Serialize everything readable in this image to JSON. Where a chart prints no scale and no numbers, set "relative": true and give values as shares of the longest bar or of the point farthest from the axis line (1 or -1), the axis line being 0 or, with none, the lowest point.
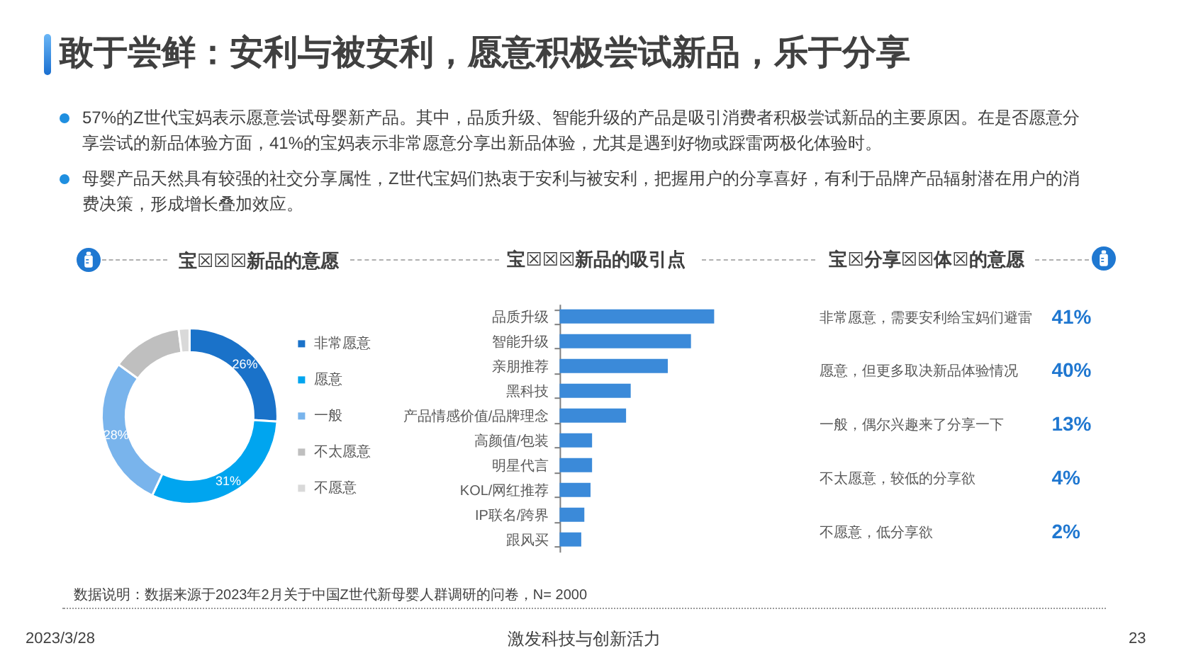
{
  "chart_data": [
    {
      "type": "other",
      "title": "敢于尝鲜：安利与被安利，愿意积极尝试新品，乐于分享",
      "annotations": [
        "57%的Z世代宝妈表示愿意尝试母婴新产品。其中，品质升级、智能升级的产品是吸引消费者积极尝试新品的主要原因。在是否愿意分享尝试的新品体验方面，41%的宝妈表示非常愿意分享出新品体验，尤其是遇到好物或踩雷两极化体验时。",
        "母婴产品天然具有较强的社交分享属性，Z世代宝妈们热衷于安利与被安利，把握用户的分享喜好，有利于品牌产品辐射潜在用户的消费决策，形成增长叠加效应。"
      ]
    },
    {
      "type": "donut",
      "title": "宝☒☒☒新品的意愿",
      "categories": [
        "非常愿意",
        "愿意",
        "一般",
        "不太愿意",
        "不愿意"
      ],
      "values": [
        26,
        31,
        28,
        13,
        2
      ],
      "colors": [
        "#1a72c9",
        "#00a5ef",
        "#79b4ec",
        "#bfbfbf",
        "#d9d9d9"
      ],
      "value_labels": [
        "26%",
        "31%",
        "28%",
        null,
        null
      ],
      "legend": "right"
    },
    {
      "type": "bar",
      "orientation": "horizontal",
      "relative": true,
      "title": "宝☒☒☒新品的吸引点",
      "categories": [
        "品质升级",
        "智能升级",
        "亲朋推荐",
        "黑科技",
        "产品情感价值/品牌理念",
        "高颜值/包装",
        "明星代言",
        "KOL/网红推荐",
        "IP联名/跨界",
        "跟风买"
      ],
      "values": [
        1,
        0.85,
        0.7,
        0.46,
        0.43,
        0.21,
        0.21,
        0.2,
        0.16,
        0.14
      ],
      "color": "#3b8ad9"
    },
    {
      "type": "other",
      "title": "宝☒分享☒☒体☒的意愿",
      "categories": [
        "非常愿意，需要安利给宝妈们避雷",
        "愿意，但更多取决新品体验情况",
        "一般，偶尔兴趣来了分享一下",
        "不太愿意，较低的分享欲",
        "不愿意，低分享欲"
      ],
      "values": [
        41,
        40,
        13,
        4,
        2
      ],
      "value_labels": [
        "41%",
        "40%",
        "13%",
        "4%",
        "2%"
      ],
      "color": "#1f77d0"
    },
    {
      "type": "other",
      "annotations": [
        "数据说明：数据来源于2023年2月关于中国Z世代新母婴人群调研的问卷，N= 2000",
        "2023/3/28",
        "激发科技与创新活力",
        "23"
      ]
    }
  ]
}
